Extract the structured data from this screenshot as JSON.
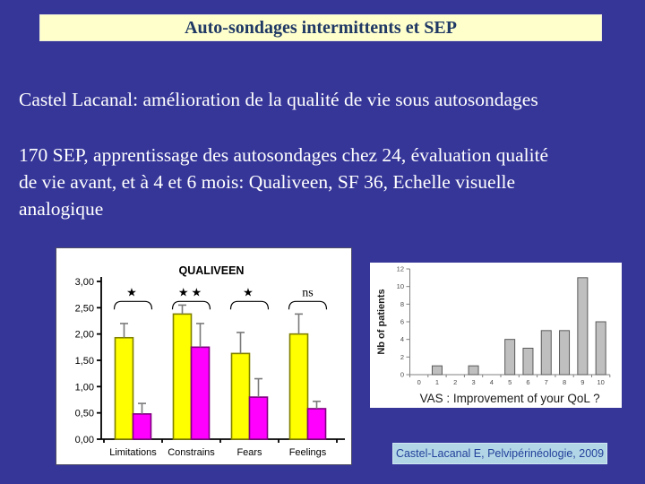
{
  "slide": {
    "title": "Auto-sondages intermittents et SEP",
    "body_line1": "Castel Lacanal: amélioration de la qualité de vie sous autosondages",
    "body_paragraph": "170 SEP, apprentissage des autosondages chez 24, évaluation qualité\nde vie avant, et à 4 et 6 mois: Qualiveen, SF 36, Echelle visuelle\nanalogique",
    "citation": "Castel-Lacanal E, Pelvipérinéologie, 2009"
  },
  "colors": {
    "background": "#363699",
    "title_box_bg": "#FFFFCC",
    "title_text": "#1F3864",
    "body_text": "#FFFFFF",
    "panel_bg": "#FFFFFF",
    "citation_bg": "#B3D6E7",
    "citation_text": "#21409A"
  },
  "chart_data": [
    {
      "id": "qualiveen",
      "type": "bar",
      "title": "QUALIVEEN",
      "categories": [
        "Limitations",
        "Constrains",
        "Fears",
        "Feelings"
      ],
      "series": [
        {
          "name": "yellow",
          "color": "#FFFF00",
          "border_color": "#808000",
          "values": [
            1.93,
            2.38,
            1.63,
            2.0
          ],
          "error_top": [
            2.2,
            2.55,
            2.03,
            2.38
          ]
        },
        {
          "name": "magenta",
          "color": "#FF00FF",
          "border_color": "#800080",
          "values": [
            0.48,
            1.75,
            0.8,
            0.58
          ],
          "error_top": [
            0.68,
            2.2,
            1.15,
            0.72
          ]
        }
      ],
      "significance": [
        "★",
        "★★",
        "★",
        "ns"
      ],
      "error_color": "#7A7A7A",
      "ylim": [
        0,
        3
      ],
      "ytick_step": 0.5,
      "ytick_labels": [
        "0,00",
        "0,50",
        "1,00",
        "1,50",
        "2,00",
        "2,50",
        "3,00"
      ],
      "grid": false,
      "legend": false
    },
    {
      "id": "vas",
      "type": "bar",
      "title": "",
      "xlabel": "VAS : Improvement of your QoL ?",
      "ylabel": "Nb of patients",
      "categories": [
        "0",
        "1",
        "2",
        "3",
        "4",
        "5",
        "6",
        "7",
        "8",
        "9",
        "10"
      ],
      "values": [
        0,
        1,
        0,
        1,
        0,
        4,
        3,
        5,
        5,
        11,
        6
      ],
      "ylim": [
        0,
        12
      ],
      "ytick_step": 2,
      "bar_color": "#BFBFBF",
      "bar_border_color": "#595959",
      "axis_color": "#808080",
      "grid": false,
      "legend": false
    }
  ]
}
